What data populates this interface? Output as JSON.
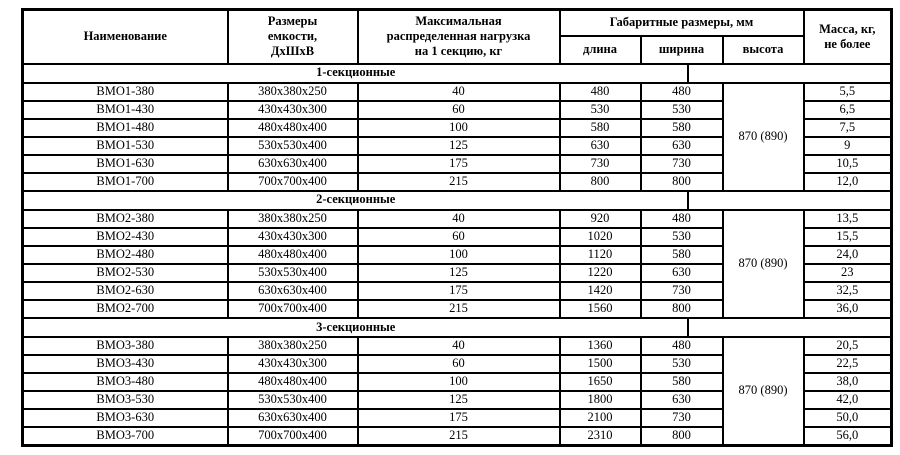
{
  "colors": {
    "background": "#ffffff",
    "text": "#000000",
    "border": "#000000"
  },
  "table": {
    "columns": {
      "name": "Наименование",
      "container": "Размеры\nемкости,\nДхШхВ",
      "load": "Максимальная\nраспределенная нагрузка\nна 1 секцию, кг",
      "overall": "Габаритные размеры, мм",
      "length": "длина",
      "width": "ширина",
      "height": "высота",
      "mass": "Масса, кг,\nне более"
    },
    "sections": [
      {
        "title": "1-секционные",
        "height_merged": "870 (890)",
        "rows": [
          {
            "name": "ВМО1-380",
            "container": "380x380x250",
            "load": "40",
            "length": "480",
            "width": "480",
            "mass": "5,5"
          },
          {
            "name": "ВМО1-430",
            "container": "430x430x300",
            "load": "60",
            "length": "530",
            "width": "530",
            "mass": "6,5"
          },
          {
            "name": "ВМО1-480",
            "container": "480x480x400",
            "load": "100",
            "length": "580",
            "width": "580",
            "mass": "7,5"
          },
          {
            "name": "ВМО1-530",
            "container": "530x530x400",
            "load": "125",
            "length": "630",
            "width": "630",
            "mass": "9"
          },
          {
            "name": "ВМО1-630",
            "container": "630x630x400",
            "load": "175",
            "length": "730",
            "width": "730",
            "mass": "10,5"
          },
          {
            "name": "ВМО1-700",
            "container": "700x700x400",
            "load": "215",
            "length": "800",
            "width": "800",
            "mass": "12,0"
          }
        ]
      },
      {
        "title": "2-секционные",
        "height_merged": "870 (890)",
        "rows": [
          {
            "name": "ВМО2-380",
            "container": "380x380x250",
            "load": "40",
            "length": "920",
            "width": "480",
            "mass": "13,5"
          },
          {
            "name": "ВМО2-430",
            "container": "430x430x300",
            "load": "60",
            "length": "1020",
            "width": "530",
            "mass": "15,5"
          },
          {
            "name": "ВМО2-480",
            "container": "480x480x400",
            "load": "100",
            "length": "1120",
            "width": "580",
            "mass": "24,0"
          },
          {
            "name": "ВМО2-530",
            "container": "530x530x400",
            "load": "125",
            "length": "1220",
            "width": "630",
            "mass": "23"
          },
          {
            "name": "ВМО2-630",
            "container": "630x630x400",
            "load": "175",
            "length": "1420",
            "width": "730",
            "mass": "32,5"
          },
          {
            "name": "ВМО2-700",
            "container": "700x700x400",
            "load": "215",
            "length": "1560",
            "width": "800",
            "mass": "36,0"
          }
        ]
      },
      {
        "title": "3-секционные",
        "height_merged": "870 (890)",
        "rows": [
          {
            "name": "ВМО3-380",
            "container": "380x380x250",
            "load": "40",
            "length": "1360",
            "width": "480",
            "mass": "20,5"
          },
          {
            "name": "ВМО3-430",
            "container": "430x430x300",
            "load": "60",
            "length": "1500",
            "width": "530",
            "mass": "22,5"
          },
          {
            "name": "ВМО3-480",
            "container": "480x480x400",
            "load": "100",
            "length": "1650",
            "width": "580",
            "mass": "38,0"
          },
          {
            "name": "ВМО3-530",
            "container": "530x530x400",
            "load": "125",
            "length": "1800",
            "width": "630",
            "mass": "42,0"
          },
          {
            "name": "ВМО3-630",
            "container": "630x630x400",
            "load": "175",
            "length": "2100",
            "width": "730",
            "mass": "50,0"
          },
          {
            "name": "ВМО3-700",
            "container": "700x700x400",
            "load": "215",
            "length": "2310",
            "width": "800",
            "mass": "56,0"
          }
        ]
      }
    ]
  }
}
